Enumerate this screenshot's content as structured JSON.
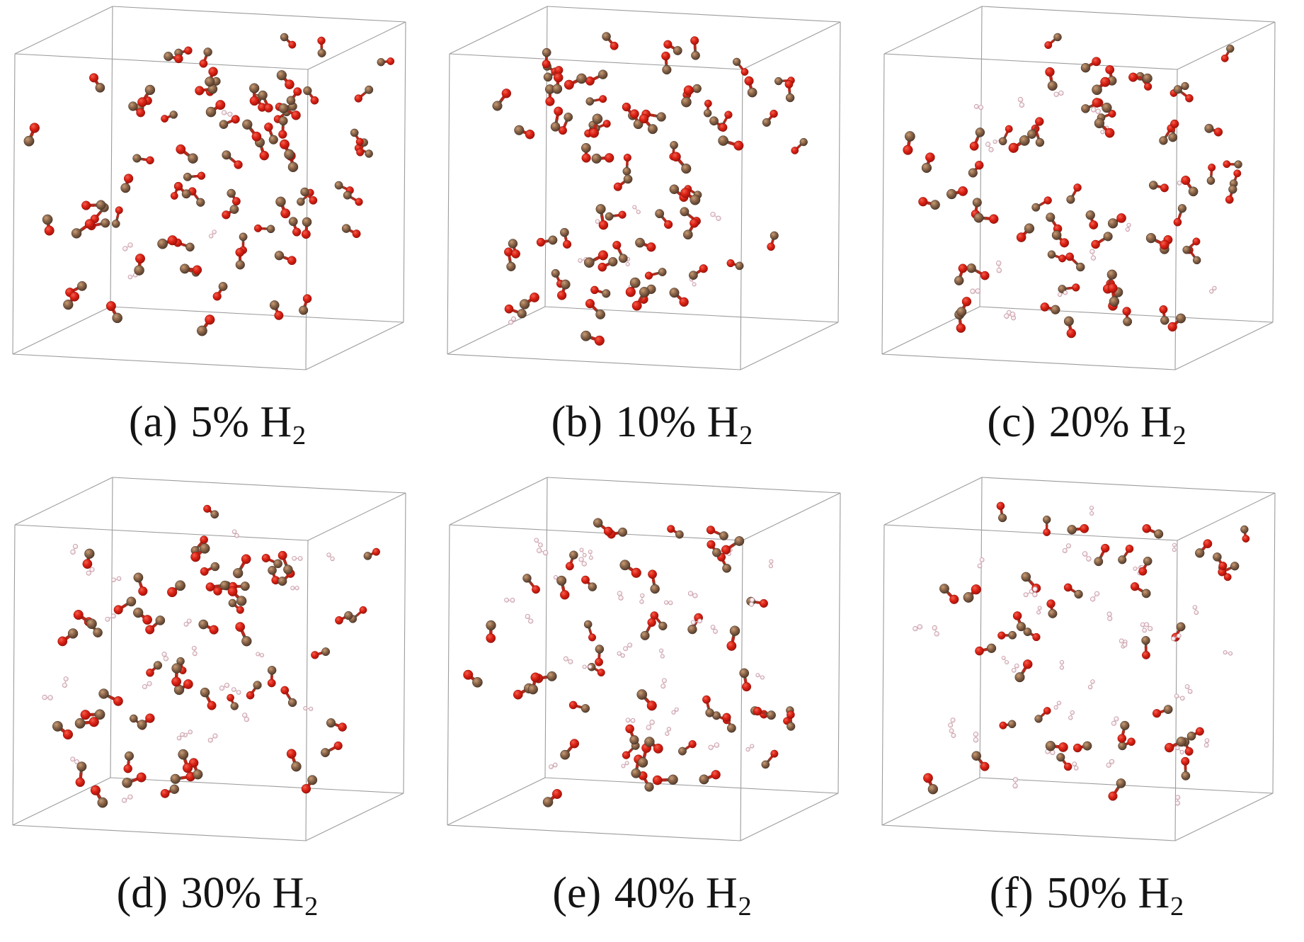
{
  "figure": {
    "background": "#ffffff"
  },
  "colors": {
    "box_edge": "#9c9c9c",
    "carbon_center": "#c79d76",
    "carbon_mid": "#8a6449",
    "carbon_rim": "#4e3828",
    "carbon_stroke": "#3e2d21",
    "oxygen_center": "#f0614f",
    "oxygen_mid": "#dd2114",
    "oxygen_rim": "#9a120a",
    "oxygen_stroke": "#8a0f08",
    "hydrogen_center": "#ffffff",
    "hydrogen_mid": "#f7edef",
    "hydrogen_rim": "#e9ced4",
    "hydrogen_stroke": "#c79ca8",
    "hydrogen_bond": "#dcbcc3",
    "bond_carbon_half": "#6e4c3a",
    "bond_oxygen_half": "#b7281b",
    "caption_text": "#141414"
  },
  "panels": [
    {
      "tag": "(a)",
      "main": "5% H",
      "sub": "2",
      "h2_percent": 5,
      "co_count": 76,
      "h2_count": 4,
      "seed": 17
    },
    {
      "tag": "(b)",
      "main": "10% H",
      "sub": "2",
      "h2_percent": 10,
      "co_count": 72,
      "h2_count": 8,
      "seed": 29
    },
    {
      "tag": "(c)",
      "main": "20% H",
      "sub": "2",
      "h2_percent": 20,
      "co_count": 64,
      "h2_count": 16,
      "seed": 43
    },
    {
      "tag": "(d)",
      "main": "30% H",
      "sub": "2",
      "h2_percent": 30,
      "co_count": 56,
      "h2_count": 24,
      "seed": 57
    },
    {
      "tag": "(e)",
      "main": "40% H",
      "sub": "2",
      "h2_percent": 40,
      "co_count": 48,
      "h2_count": 32,
      "seed": 71
    },
    {
      "tag": "(f)",
      "main": "50% H",
      "sub": "2",
      "h2_percent": 50,
      "co_count": 40,
      "h2_count": 40,
      "seed": 83
    }
  ]
}
